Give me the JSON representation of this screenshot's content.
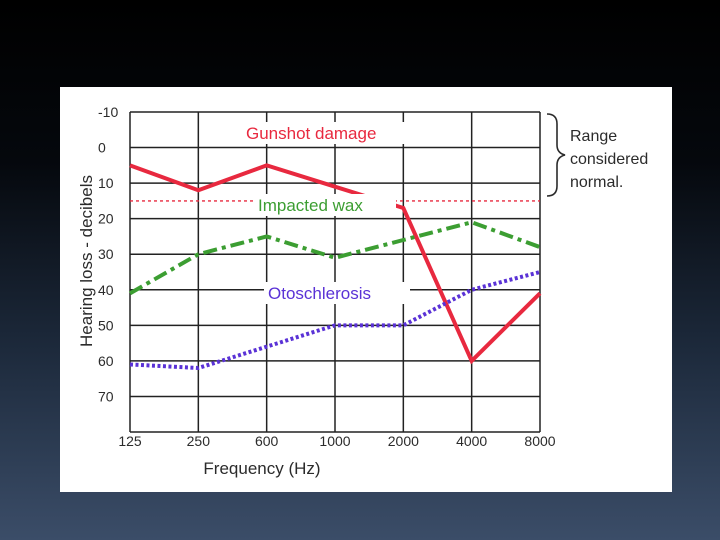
{
  "chart_data": {
    "type": "line",
    "categories": [
      "125",
      "250",
      "600",
      "1000",
      "2000",
      "4000",
      "8000"
    ],
    "xlabel": "Frequency (Hz)",
    "ylabel": "Hearing loss - decibels",
    "ylim": [
      -10,
      80
    ],
    "y_reversed": true,
    "yticks": [
      -10,
      0,
      10,
      20,
      30,
      40,
      50,
      60,
      70
    ],
    "grid": true,
    "series": [
      {
        "name": "Gunshot damage",
        "color": "#e8293f",
        "style": "solid",
        "values": [
          5,
          12,
          5,
          11,
          17,
          60,
          41
        ]
      },
      {
        "name": "Impacted wax",
        "color": "#3c9e32",
        "style": "dashdot",
        "values": [
          41,
          30,
          25,
          31,
          26,
          21,
          28
        ]
      },
      {
        "name": "Otoschlerosis",
        "color": "#5a32d6",
        "style": "dotted",
        "values": [
          61,
          62,
          56,
          50,
          50,
          40,
          35
        ]
      }
    ],
    "normal_threshold": 15,
    "annotation": {
      "lines": [
        "Range",
        "considered",
        "normal."
      ]
    }
  }
}
